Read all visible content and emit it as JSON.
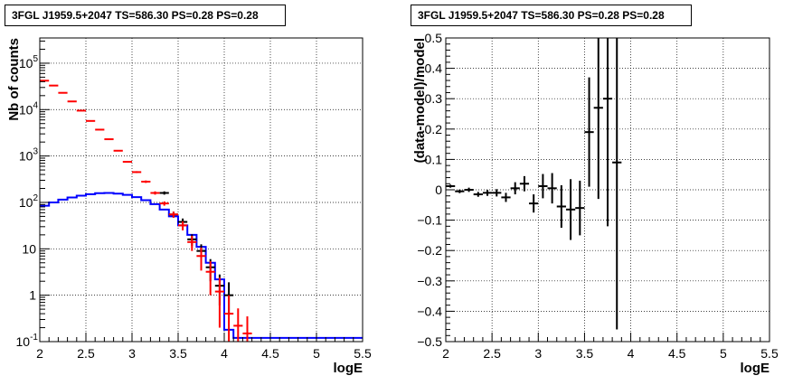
{
  "chart_data": [
    {
      "type": "histogram",
      "title": "3FGL J1959.5+2047 TS=586.30 PS=0.28 PS=0.28",
      "xlabel": "logE",
      "ylabel": "Nb of counts",
      "xlim": [
        2,
        5.5
      ],
      "ylim": [
        0.1,
        350000
      ],
      "yscale": "log",
      "grid": true,
      "xticks": [
        "2",
        "2.5",
        "3",
        "3.5",
        "4",
        "4.5",
        "5",
        "5.5"
      ],
      "yticks": [
        {
          "value": 0.1,
          "base": "10",
          "exp": "-1"
        },
        {
          "value": 1,
          "base": "1",
          "exp": ""
        },
        {
          "value": 10,
          "base": "10",
          "exp": ""
        },
        {
          "value": 100,
          "base": "10",
          "exp": "2"
        },
        {
          "value": 1000,
          "base": "10",
          "exp": "3"
        },
        {
          "value": 10000,
          "base": "10",
          "exp": "4"
        },
        {
          "value": 100000,
          "base": "10",
          "exp": "5"
        }
      ],
      "bin_edges": [
        2.0,
        2.1,
        2.2,
        2.3,
        2.4,
        2.5,
        2.6,
        2.7,
        2.8,
        2.9,
        3.0,
        3.1,
        3.2,
        3.3,
        3.4,
        3.5,
        3.6,
        3.7,
        3.8,
        3.9,
        4.0,
        4.1,
        4.2,
        4.3,
        4.4,
        4.5,
        4.6,
        4.7,
        4.8,
        4.9,
        5.0,
        5.1,
        5.2,
        5.3,
        5.4,
        5.5
      ],
      "series": [
        {
          "style": "step",
          "color": "#0000ff",
          "values": [
            85,
            100,
            115,
            128,
            140,
            150,
            158,
            160,
            155,
            145,
            130,
            112,
            92,
            70,
            50,
            32,
            20,
            11,
            5,
            2.2,
            0.18,
            0.12,
            0.12,
            0.12,
            0.12,
            0.12,
            0.12,
            0.12,
            0.12,
            0.12,
            0.12,
            0.12,
            0.12,
            0.12,
            0.12
          ]
        },
        {
          "style": "errorbar",
          "color": "#ff0000",
          "x": [
            2.05,
            2.15,
            2.25,
            2.35,
            2.45,
            2.55,
            2.65,
            2.75,
            2.85,
            2.95,
            3.05,
            3.15,
            3.25,
            3.35,
            3.45,
            3.55,
            3.65,
            3.75,
            3.85,
            3.95,
            4.05,
            4.15,
            4.25
          ],
          "y": [
            42000,
            33000,
            23000,
            15000,
            9500,
            5700,
            3700,
            2300,
            1300,
            750,
            450,
            280,
            160,
            95,
            55,
            32,
            14,
            7,
            3.2,
            1.2,
            0.4,
            0.22,
            0.15
          ],
          "yerr_low": [
            200,
            180,
            150,
            120,
            100,
            75,
            60,
            48,
            36,
            27,
            21,
            17,
            13,
            10,
            8,
            7,
            5,
            3.6,
            2.2,
            1.0,
            0.35,
            0.19,
            0.13
          ],
          "yerr_high": [
            200,
            180,
            150,
            120,
            100,
            75,
            60,
            48,
            36,
            27,
            21,
            17,
            13,
            10,
            8,
            7,
            5,
            3.6,
            2.2,
            1.2,
            0.6,
            0.3,
            0.2
          ]
        },
        {
          "style": "errorbar",
          "color": "#000000",
          "x": [
            3.35,
            3.45,
            3.55,
            3.65,
            3.75,
            3.85,
            3.95,
            4.05
          ],
          "y": [
            160,
            55,
            38,
            16,
            9,
            4,
            1.6,
            1.0
          ],
          "yerr_low": [
            13,
            8,
            7,
            4.5,
            3.5,
            2,
            1.0,
            0.6
          ],
          "yerr_high": [
            13,
            8,
            7,
            4.5,
            3.5,
            2,
            1.2,
            0.9
          ]
        }
      ]
    },
    {
      "type": "scatter",
      "title": "3FGL J1959.5+2047 TS=586.30 PS=0.28 PS=0.28",
      "xlabel": "logE",
      "ylabel": "(data-model)/model",
      "xlim": [
        2,
        5.5
      ],
      "ylim": [
        -0.5,
        0.5
      ],
      "grid": true,
      "xticks": [
        "2",
        "2.5",
        "3",
        "3.5",
        "4",
        "4.5",
        "5",
        "5.5"
      ],
      "yticks": [
        "−0.5",
        "−0.4",
        "−0.3",
        "−0.2",
        "−0.1",
        "0",
        "0.1",
        "0.2",
        "0.3",
        "0.4",
        "0.5"
      ],
      "series": [
        {
          "color": "#000000",
          "x": [
            2.05,
            2.15,
            2.25,
            2.35,
            2.45,
            2.55,
            2.65,
            2.75,
            2.85,
            2.95,
            3.05,
            3.15,
            3.25,
            3.35,
            3.45,
            3.55,
            3.65,
            3.75,
            3.85
          ],
          "y": [
            0.012,
            -0.005,
            0.0,
            -0.015,
            -0.01,
            -0.01,
            -0.025,
            0.005,
            0.02,
            -0.045,
            0.012,
            0.005,
            -0.055,
            -0.065,
            -0.06,
            0.19,
            0.27,
            0.3,
            0.09
          ],
          "yerr": [
            0.005,
            0.006,
            0.007,
            0.008,
            0.01,
            0.012,
            0.015,
            0.02,
            0.025,
            0.03,
            0.04,
            0.05,
            0.07,
            0.1,
            0.09,
            0.18,
            0.3,
            0.42,
            0.55
          ],
          "xerr": 0.05
        }
      ]
    }
  ]
}
